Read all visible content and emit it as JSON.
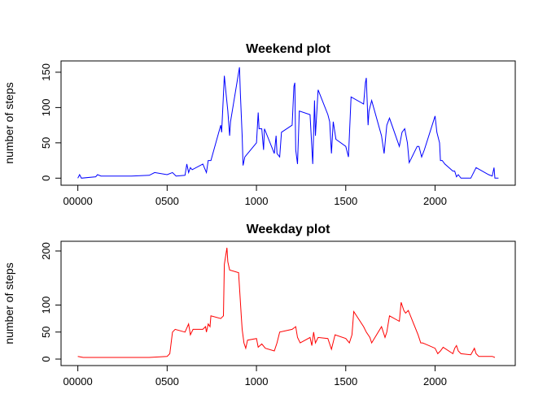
{
  "chart_data": [
    {
      "type": "line",
      "title": "Weekend plot",
      "y_label": "number of steps",
      "x": [
        0,
        10,
        20,
        100,
        110,
        130,
        200,
        300,
        400,
        430,
        500,
        530,
        550,
        600,
        610,
        620,
        630,
        640,
        700,
        720,
        730,
        745,
        800,
        805,
        820,
        830,
        840,
        850,
        855,
        905,
        910,
        920,
        925,
        935,
        1000,
        1010,
        1015,
        1030,
        1040,
        1045,
        1100,
        1110,
        1115,
        1130,
        1140,
        1200,
        1210,
        1215,
        1220,
        1230,
        1240,
        1300,
        1315,
        1325,
        1330,
        1345,
        1400,
        1410,
        1420,
        1430,
        1445,
        1500,
        1515,
        1530,
        1600,
        1610,
        1615,
        1625,
        1630,
        1645,
        1700,
        1715,
        1730,
        1745,
        1800,
        1815,
        1830,
        1845,
        1855,
        1900,
        1910,
        1925,
        1940,
        2000,
        2010,
        2015,
        2025,
        2030,
        2040,
        2055,
        2100,
        2110,
        2120,
        2130,
        2145,
        2200,
        2230,
        2300,
        2320,
        2330,
        2335,
        2355
      ],
      "series": [
        {
          "color": "#0000ff",
          "values": [
            0,
            5,
            0,
            2,
            5,
            3,
            3,
            3,
            4,
            8,
            5,
            8,
            3,
            4,
            20,
            8,
            15,
            12,
            20,
            8,
            25,
            25,
            75,
            65,
            145,
            120,
            95,
            60,
            80,
            157,
            120,
            60,
            18,
            30,
            50,
            93,
            70,
            70,
            40,
            70,
            35,
            60,
            35,
            30,
            65,
            75,
            130,
            135,
            40,
            20,
            95,
            90,
            20,
            110,
            60,
            125,
            90,
            80,
            35,
            80,
            55,
            45,
            30,
            115,
            105,
            135,
            142,
            75,
            95,
            110,
            60,
            35,
            75,
            85,
            45,
            65,
            70,
            50,
            22,
            45,
            45,
            30,
            40,
            88,
            65,
            60,
            50,
            25,
            25,
            20,
            10,
            10,
            2,
            5,
            0,
            0,
            15,
            5,
            3,
            15,
            0,
            0
          ]
        }
      ],
      "xlim": [
        -94,
        2449
      ],
      "ylim": [
        -10,
        166
      ],
      "xticks": [
        {
          "value": 0,
          "label": "00000"
        },
        {
          "value": 500,
          "label": "0500"
        },
        1000,
        1500,
        2000
      ],
      "yticks": [
        0,
        50,
        100,
        150
      ]
    },
    {
      "type": "line",
      "title": "Weekday plot",
      "y_label": "number of steps",
      "x": [
        0,
        30,
        100,
        200,
        300,
        400,
        500,
        515,
        530,
        545,
        600,
        620,
        630,
        645,
        700,
        715,
        720,
        730,
        740,
        745,
        800,
        815,
        820,
        835,
        840,
        850,
        900,
        915,
        920,
        930,
        940,
        950,
        1000,
        1010,
        1030,
        1050,
        1100,
        1115,
        1130,
        1200,
        1220,
        1230,
        1245,
        1300,
        1310,
        1320,
        1330,
        1345,
        1400,
        1420,
        1440,
        1500,
        1520,
        1535,
        1545,
        1600,
        1615,
        1635,
        1645,
        1700,
        1720,
        1730,
        1745,
        1800,
        1810,
        1825,
        1835,
        1850,
        1905,
        1920,
        1930,
        1945,
        2000,
        2015,
        2030,
        2045,
        2100,
        2110,
        2120,
        2130,
        2145,
        2200,
        2220,
        2230,
        2245,
        2300,
        2320,
        2335
      ],
      "series": [
        {
          "color": "#ff0000",
          "values": [
            5,
            3,
            3,
            3,
            3,
            3,
            5,
            10,
            50,
            55,
            50,
            65,
            45,
            55,
            55,
            60,
            50,
            65,
            60,
            80,
            75,
            80,
            175,
            206,
            180,
            165,
            160,
            80,
            55,
            30,
            20,
            35,
            38,
            22,
            28,
            20,
            15,
            30,
            50,
            55,
            60,
            40,
            30,
            40,
            25,
            50,
            30,
            40,
            38,
            18,
            45,
            38,
            30,
            45,
            88,
            60,
            50,
            40,
            30,
            60,
            40,
            50,
            80,
            70,
            105,
            90,
            85,
            90,
            45,
            30,
            30,
            28,
            20,
            10,
            15,
            22,
            10,
            20,
            25,
            15,
            10,
            8,
            20,
            10,
            5,
            5,
            5,
            3
          ]
        }
      ],
      "xlim": [
        -94,
        2449
      ],
      "ylim": [
        -12,
        218
      ],
      "xticks": [
        {
          "value": 0,
          "label": "00000"
        },
        {
          "value": 500,
          "label": "0500"
        },
        1000,
        1500,
        2000
      ],
      "yticks": [
        0,
        50,
        100,
        200
      ]
    }
  ]
}
